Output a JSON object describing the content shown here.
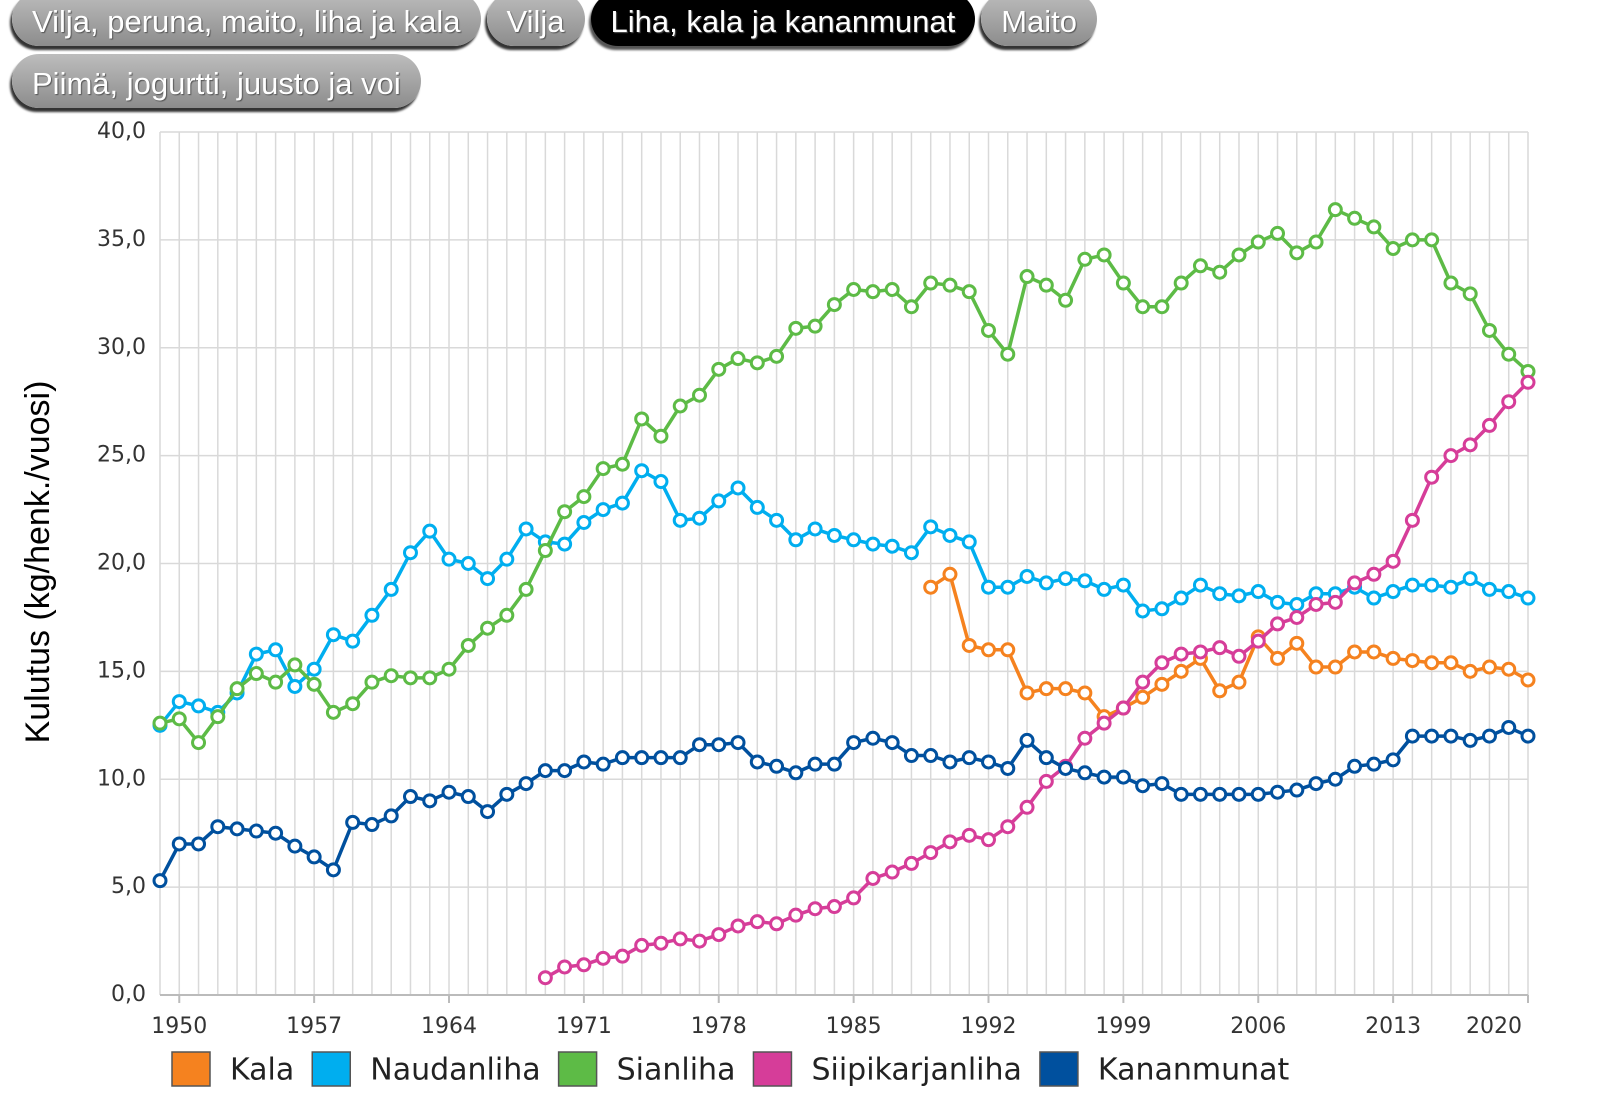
{
  "tabs": {
    "items": [
      "Vilja, peruna, maito, liha ja kala",
      "Vilja",
      "Liha, kala ja kananmunat",
      "Maito",
      "Piimä, jogurtti, juusto ja voi"
    ],
    "active": 2
  },
  "chart_data": {
    "type": "line",
    "y_label": "Kulutus (kg/henk./vuosi)",
    "x": [
      1949,
      1950,
      1951,
      1952,
      1953,
      1954,
      1955,
      1956,
      1957,
      1958,
      1959,
      1960,
      1961,
      1962,
      1963,
      1964,
      1965,
      1966,
      1967,
      1968,
      1969,
      1970,
      1971,
      1972,
      1973,
      1974,
      1975,
      1976,
      1977,
      1978,
      1979,
      1980,
      1981,
      1982,
      1983,
      1984,
      1985,
      1986,
      1987,
      1988,
      1989,
      1990,
      1991,
      1992,
      1993,
      1994,
      1995,
      1996,
      1997,
      1998,
      1999,
      2000,
      2001,
      2002,
      2003,
      2004,
      2005,
      2006,
      2007,
      2008,
      2009,
      2010,
      2011,
      2012,
      2013,
      2014,
      2015,
      2016,
      2017,
      2018,
      2019,
      2020
    ],
    "xlim": [
      1949,
      2020
    ],
    "xticks": [
      1950,
      1957,
      1964,
      1971,
      1978,
      1985,
      1992,
      1999,
      2006,
      2013,
      2020
    ],
    "ylim": [
      0,
      40
    ],
    "yticks": [
      {
        "value": 0,
        "label": "0,0"
      },
      {
        "value": 5,
        "label": "5,0"
      },
      {
        "value": 10,
        "label": "10,0"
      },
      {
        "value": 15,
        "label": "15,0"
      },
      {
        "value": 20,
        "label": "20,0"
      },
      {
        "value": 25,
        "label": "25,0"
      },
      {
        "value": 30,
        "label": "30,0"
      },
      {
        "value": 35,
        "label": "35,0"
      },
      {
        "value": 40,
        "label": "40,0"
      }
    ],
    "grid": true,
    "legend": "bottom",
    "series": [
      {
        "name": "Kala",
        "color": "#f5821f",
        "values": [
          null,
          null,
          null,
          null,
          null,
          null,
          null,
          null,
          null,
          null,
          null,
          null,
          null,
          null,
          null,
          null,
          null,
          null,
          null,
          null,
          null,
          null,
          null,
          null,
          null,
          null,
          null,
          null,
          null,
          null,
          null,
          null,
          null,
          null,
          null,
          null,
          null,
          null,
          null,
          null,
          18.9,
          19.5,
          16.2,
          16.0,
          16.0,
          14.0,
          14.2,
          14.2,
          14.0,
          12.9,
          13.3,
          13.8,
          14.4,
          15.0,
          15.6,
          14.1,
          14.5,
          16.6,
          15.6,
          16.3,
          15.2,
          15.2,
          15.9,
          15.9,
          15.6,
          15.5,
          15.4,
          15.4,
          15.0,
          15.2,
          15.1,
          14.6
        ]
      },
      {
        "name": "Naudanliha",
        "color": "#00aeef",
        "values": [
          12.5,
          13.6,
          13.4,
          13.1,
          14.0,
          15.8,
          16.0,
          14.3,
          15.1,
          16.7,
          16.4,
          17.6,
          18.8,
          20.5,
          21.5,
          20.2,
          20.0,
          19.3,
          20.2,
          21.6,
          21.0,
          20.9,
          21.9,
          22.5,
          22.8,
          24.3,
          23.8,
          22.0,
          22.1,
          22.9,
          23.5,
          22.6,
          22.0,
          21.1,
          21.6,
          21.3,
          21.1,
          20.9,
          20.8,
          20.5,
          21.7,
          21.3,
          21.0,
          18.9,
          18.9,
          19.4,
          19.1,
          19.3,
          19.2,
          18.8,
          19.0,
          17.8,
          17.9,
          18.4,
          19.0,
          18.6,
          18.5,
          18.7,
          18.2,
          18.1,
          18.6,
          18.6,
          18.9,
          18.4,
          18.7,
          19.0,
          19.0,
          18.9,
          19.3,
          18.8,
          18.7,
          18.4
        ]
      },
      {
        "name": "Sianliha",
        "color": "#5dbb46",
        "values": [
          12.6,
          12.8,
          11.7,
          12.9,
          14.2,
          14.9,
          14.5,
          15.3,
          14.4,
          13.1,
          13.5,
          14.5,
          14.8,
          14.7,
          14.7,
          15.1,
          16.2,
          17.0,
          17.6,
          18.8,
          20.6,
          22.4,
          23.1,
          24.4,
          24.6,
          26.7,
          25.9,
          27.3,
          27.8,
          29.0,
          29.5,
          29.3,
          29.6,
          30.9,
          31.0,
          32.0,
          32.7,
          32.6,
          32.7,
          31.9,
          33.0,
          32.9,
          32.6,
          30.8,
          29.7,
          33.3,
          32.9,
          32.2,
          34.1,
          34.3,
          33.0,
          31.9,
          31.9,
          33.0,
          33.8,
          33.5,
          34.3,
          34.9,
          35.3,
          34.4,
          34.9,
          36.4,
          36.0,
          35.6,
          34.6,
          35.0,
          35.0,
          33.0,
          32.5,
          30.8,
          29.7,
          28.9
        ]
      },
      {
        "name": "Siipikarjanliha",
        "color": "#d63d99",
        "values": [
          null,
          null,
          null,
          null,
          null,
          null,
          null,
          null,
          null,
          null,
          null,
          null,
          null,
          null,
          null,
          null,
          null,
          null,
          null,
          null,
          0.8,
          1.3,
          1.4,
          1.7,
          1.8,
          2.3,
          2.4,
          2.6,
          2.5,
          2.8,
          3.2,
          3.4,
          3.3,
          3.7,
          4.0,
          4.1,
          4.5,
          5.4,
          5.7,
          6.1,
          6.6,
          7.1,
          7.4,
          7.2,
          7.8,
          8.7,
          9.9,
          10.6,
          11.9,
          12.6,
          13.3,
          14.5,
          15.4,
          15.8,
          15.9,
          16.1,
          15.7,
          16.4,
          17.2,
          17.5,
          18.1,
          18.2,
          19.1,
          19.5,
          20.1,
          22.0,
          24.0,
          25.0,
          25.5,
          26.4,
          27.5,
          28.4
        ]
      },
      {
        "name": "Kananmunat",
        "color": "#00509e",
        "values": [
          5.3,
          7.0,
          7.0,
          7.8,
          7.7,
          7.6,
          7.5,
          6.9,
          6.4,
          5.8,
          8.0,
          7.9,
          8.3,
          9.2,
          9.0,
          9.4,
          9.2,
          8.5,
          9.3,
          9.8,
          10.4,
          10.4,
          10.8,
          10.7,
          11.0,
          11.0,
          11.0,
          11.0,
          11.6,
          11.6,
          11.7,
          10.8,
          10.6,
          10.3,
          10.7,
          10.7,
          11.7,
          11.9,
          11.7,
          11.1,
          11.1,
          10.8,
          11.0,
          10.8,
          10.5,
          11.8,
          11.0,
          10.5,
          10.3,
          10.1,
          10.1,
          9.7,
          9.8,
          9.3,
          9.3,
          9.3,
          9.3,
          9.3,
          9.4,
          9.5,
          9.8,
          10.0,
          10.6,
          10.7,
          10.9,
          12.0,
          12.0,
          12.0,
          11.8,
          12.0,
          12.4,
          12.0
        ]
      }
    ]
  }
}
